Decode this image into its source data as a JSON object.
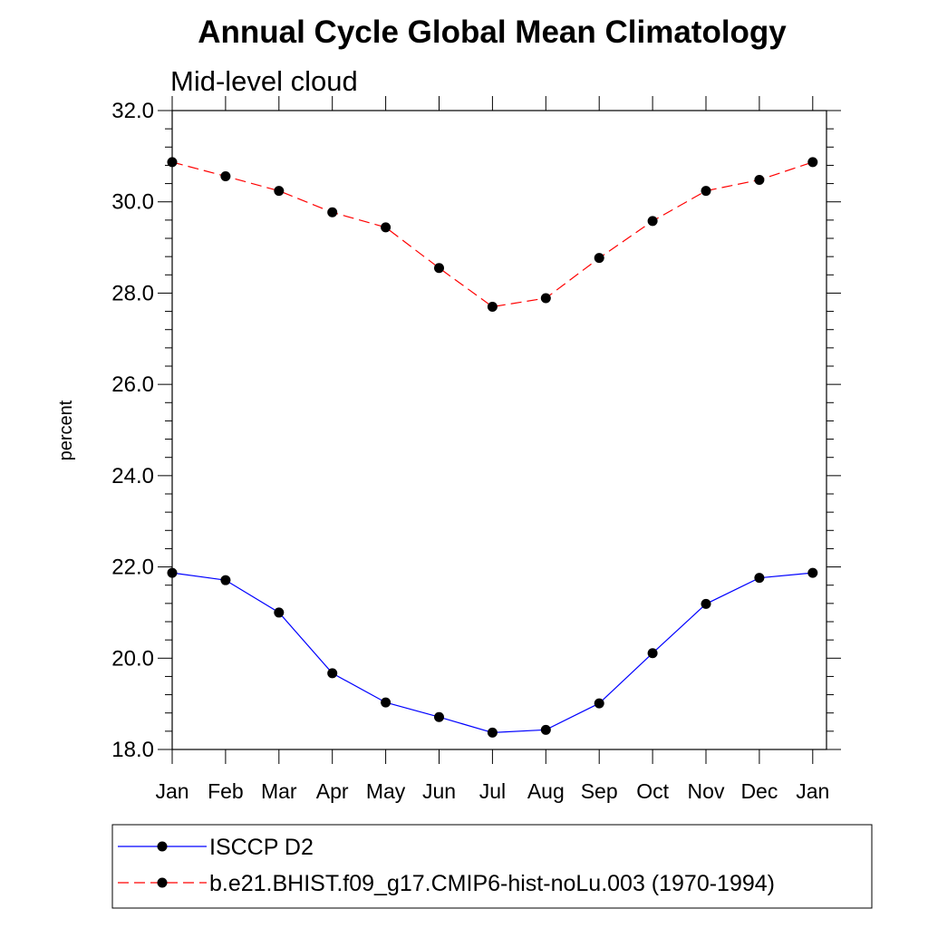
{
  "chart_data": {
    "type": "line",
    "title": "Annual Cycle Global Mean Climatology",
    "subtitle": "Mid-level cloud",
    "xlabel": "",
    "ylabel": "percent",
    "categories": [
      "Jan",
      "Feb",
      "Mar",
      "Apr",
      "May",
      "Jun",
      "Jul",
      "Aug",
      "Sep",
      "Oct",
      "Nov",
      "Dec",
      "Jan"
    ],
    "ylim": [
      18.0,
      32.0
    ],
    "yticks": [
      "18.0",
      "20.0",
      "22.0",
      "24.0",
      "26.0",
      "28.0",
      "30.0",
      "32.0"
    ],
    "grid": false,
    "legend_position": "bottom",
    "series": [
      {
        "name": "ISCCP D2",
        "color": "#0000ff",
        "line_style": "solid",
        "marker": "filled-circle",
        "values": [
          21.87,
          21.71,
          21.0,
          19.67,
          19.03,
          18.71,
          18.37,
          18.43,
          19.01,
          20.11,
          21.19,
          21.76,
          21.87
        ]
      },
      {
        "name": "b.e21.BHIST.f09_g17.CMIP6-hist-noLu.003 (1970-1994)",
        "color": "#ff0000",
        "line_style": "dashed",
        "marker": "filled-circle",
        "values": [
          30.87,
          30.56,
          30.24,
          29.77,
          29.44,
          28.55,
          27.7,
          27.89,
          28.77,
          29.58,
          30.24,
          30.48,
          30.87
        ]
      }
    ]
  }
}
